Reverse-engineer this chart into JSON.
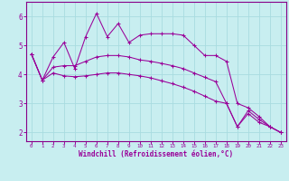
{
  "xlabel": "Windchill (Refroidissement éolien,°C)",
  "bg_color": "#c8eef0",
  "grid_color": "#a8dce0",
  "line_color": "#990099",
  "spine_color": "#880088",
  "xlim": [
    -0.5,
    23.5
  ],
  "ylim": [
    1.7,
    6.5
  ],
  "xticks": [
    0,
    1,
    2,
    3,
    4,
    5,
    6,
    7,
    8,
    9,
    10,
    11,
    12,
    13,
    14,
    15,
    16,
    17,
    18,
    19,
    20,
    21,
    22,
    23
  ],
  "yticks": [
    2,
    3,
    4,
    5,
    6
  ],
  "series": [
    {
      "x": [
        0,
        1,
        2,
        3,
        4,
        5,
        6,
        7,
        8,
        9,
        10,
        11,
        12,
        13,
        14,
        15,
        16,
        17,
        18,
        19,
        20,
        21,
        22,
        23
      ],
      "y": [
        4.7,
        3.8,
        4.6,
        5.1,
        4.2,
        5.3,
        6.1,
        5.3,
        5.75,
        5.1,
        5.35,
        5.4,
        5.4,
        5.4,
        5.35,
        5.0,
        4.65,
        4.65,
        4.45,
        3.0,
        2.85,
        2.55,
        2.2,
        2.0
      ]
    },
    {
      "x": [
        0,
        1,
        2,
        3,
        4,
        5,
        6,
        7,
        8,
        9,
        10,
        11,
        12,
        13,
        14,
        15,
        16,
        17,
        18,
        19,
        20,
        21,
        22,
        23
      ],
      "y": [
        4.7,
        3.8,
        4.25,
        4.3,
        4.3,
        4.45,
        4.6,
        4.65,
        4.65,
        4.6,
        4.5,
        4.45,
        4.38,
        4.3,
        4.2,
        4.05,
        3.9,
        3.75,
        3.0,
        2.2,
        2.75,
        2.45,
        2.2,
        2.0
      ]
    },
    {
      "x": [
        0,
        1,
        2,
        3,
        4,
        5,
        6,
        7,
        8,
        9,
        10,
        11,
        12,
        13,
        14,
        15,
        16,
        17,
        18,
        19,
        20,
        21,
        22,
        23
      ],
      "y": [
        4.7,
        3.8,
        4.05,
        3.95,
        3.92,
        3.95,
        4.0,
        4.05,
        4.05,
        4.0,
        3.95,
        3.88,
        3.78,
        3.68,
        3.56,
        3.42,
        3.25,
        3.08,
        3.0,
        2.2,
        2.65,
        2.35,
        2.2,
        2.0
      ]
    }
  ]
}
